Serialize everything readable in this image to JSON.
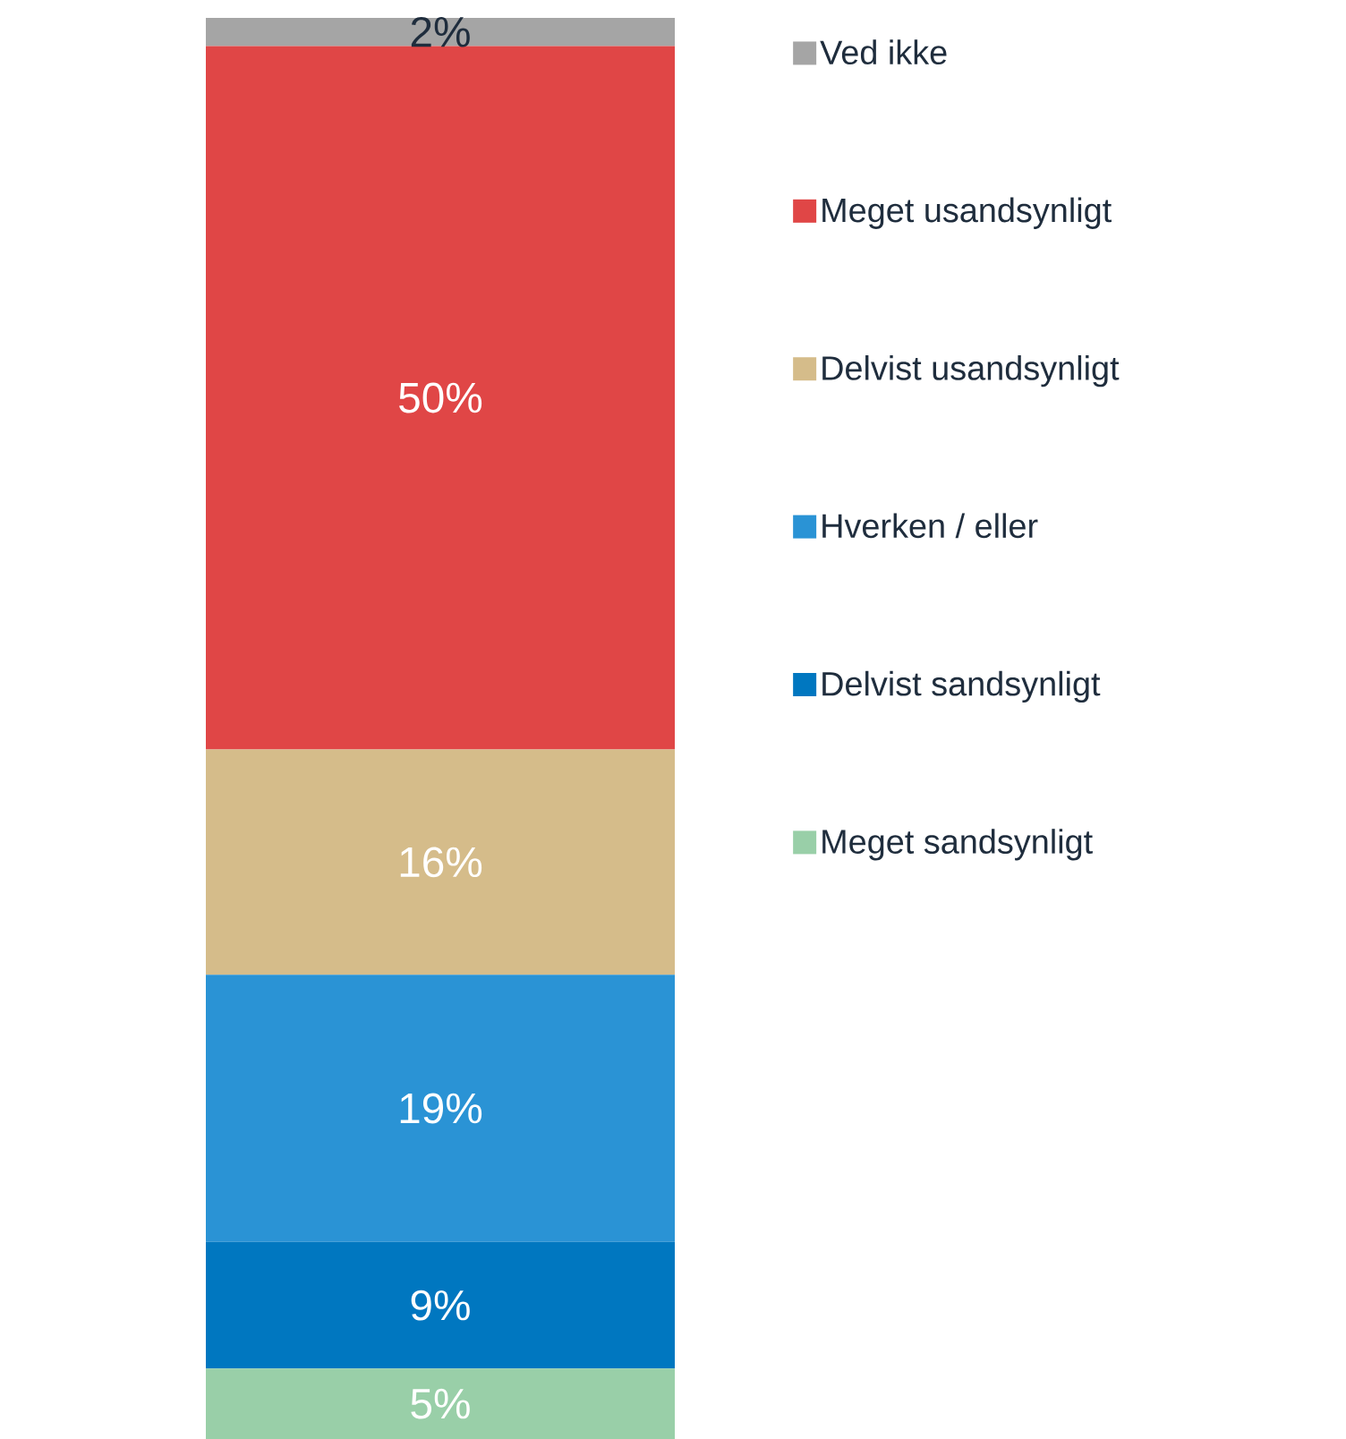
{
  "chart_data": {
    "type": "bar",
    "stacked": true,
    "categories": [
      null
    ],
    "legend": "right",
    "series": [
      {
        "name": "Meget sandsynligt",
        "color": "#99cfa8",
        "values": [
          5
        ],
        "value_labels": [
          "5%"
        ]
      },
      {
        "name": "Delvist sandsynligt",
        "color": "#0077c0",
        "values": [
          9
        ],
        "value_labels": [
          "9%"
        ]
      },
      {
        "name": "Hverken / eller",
        "color": "#2a93d5",
        "values": [
          19
        ],
        "value_labels": [
          "19%"
        ]
      },
      {
        "name": "Delvist usandsynligt",
        "color": "#d5bc8a",
        "values": [
          16
        ],
        "value_labels": [
          "16%"
        ]
      },
      {
        "name": "Meget usandsynligt",
        "color": "#e04646",
        "values": [
          50
        ],
        "value_labels": [
          "50%"
        ]
      },
      {
        "name": "Ved ikke",
        "color": "#a5a5a5",
        "values": [
          2
        ],
        "value_labels": [
          "2%"
        ]
      }
    ]
  }
}
